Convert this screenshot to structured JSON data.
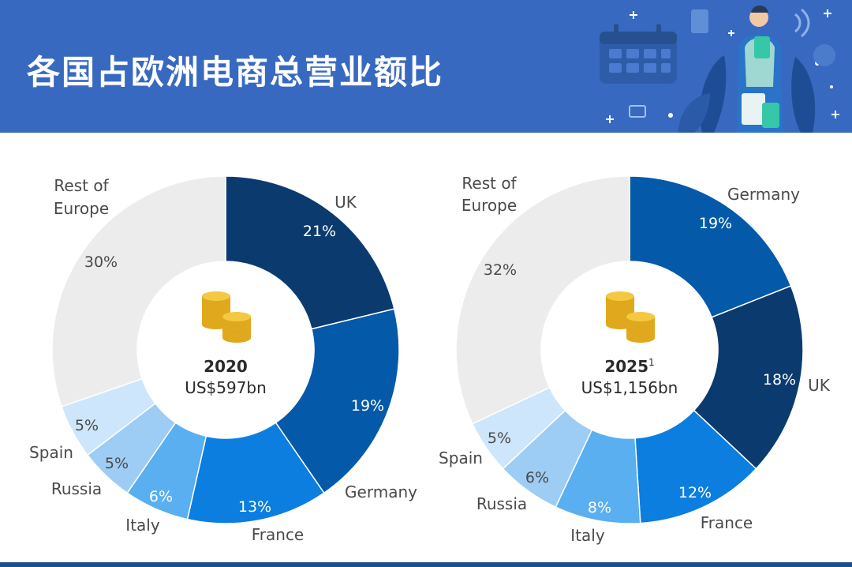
{
  "header": {
    "title": "各国占欧洲电商总营业额比"
  },
  "colors": {
    "header_bg": "#3869c0",
    "uk": "#0b3a6f",
    "germany": "#0459a8",
    "france": "#0b7ee0",
    "italy": "#5aaff0",
    "russia": "#9dcdf5",
    "spain": "#cde6fb",
    "rest": "#ececec"
  },
  "chart_data": [
    {
      "type": "pie",
      "center_year": "2020",
      "center_total": "US$597bn",
      "slices": [
        {
          "label": "UK",
          "value": 21,
          "pct": "21%"
        },
        {
          "label": "Germany",
          "value": 19,
          "pct": "19%"
        },
        {
          "label": "France",
          "value": 13,
          "pct": "13%"
        },
        {
          "label": "Italy",
          "value": 6,
          "pct": "6%"
        },
        {
          "label": "Russia",
          "value": 5,
          "pct": "5%"
        },
        {
          "label": "Spain",
          "value": 5,
          "pct": "5%"
        },
        {
          "label": "Rest of Europe",
          "value": 30,
          "pct": "30%"
        }
      ]
    },
    {
      "type": "pie",
      "center_year": "2025",
      "center_year_note": "1",
      "center_total": "US$1,156bn",
      "slices": [
        {
          "label": "Germany",
          "value": 19,
          "pct": "19%"
        },
        {
          "label": "UK",
          "value": 18,
          "pct": "18%"
        },
        {
          "label": "France",
          "value": 12,
          "pct": "12%"
        },
        {
          "label": "Italy",
          "value": 8,
          "pct": "8%"
        },
        {
          "label": "Russia",
          "value": 6,
          "pct": "6%"
        },
        {
          "label": "Spain",
          "value": 5,
          "pct": "5%"
        },
        {
          "label": "Rest of Europe",
          "value": 32,
          "pct": "32%"
        }
      ]
    }
  ]
}
